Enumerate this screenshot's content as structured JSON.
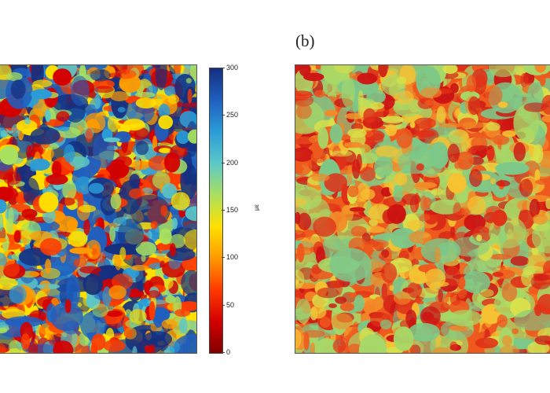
{
  "chart_data": [
    {
      "type": "heatmap",
      "panel_label": "",
      "colorbar": {
        "ticks": [
          "0",
          "50",
          "100",
          "150",
          "200",
          "250",
          "300"
        ],
        "unit": "με",
        "range": [
          0,
          300
        ],
        "colormap": "jet"
      }
    },
    {
      "type": "heatmap",
      "panel_label": "(b)"
    }
  ],
  "colors": {
    "jet": [
      "#800000",
      "#d40000",
      "#ff3a00",
      "#ff9a00",
      "#ffe000",
      "#a8e060",
      "#5cc8c8",
      "#2a9cd8",
      "#1f5fbf",
      "#14307f"
    ],
    "panel_b": [
      "#cc1414",
      "#e03018",
      "#ee5a1e",
      "#f38a28",
      "#f6c232",
      "#d8e04a",
      "#a6d868",
      "#7cc889"
    ]
  }
}
